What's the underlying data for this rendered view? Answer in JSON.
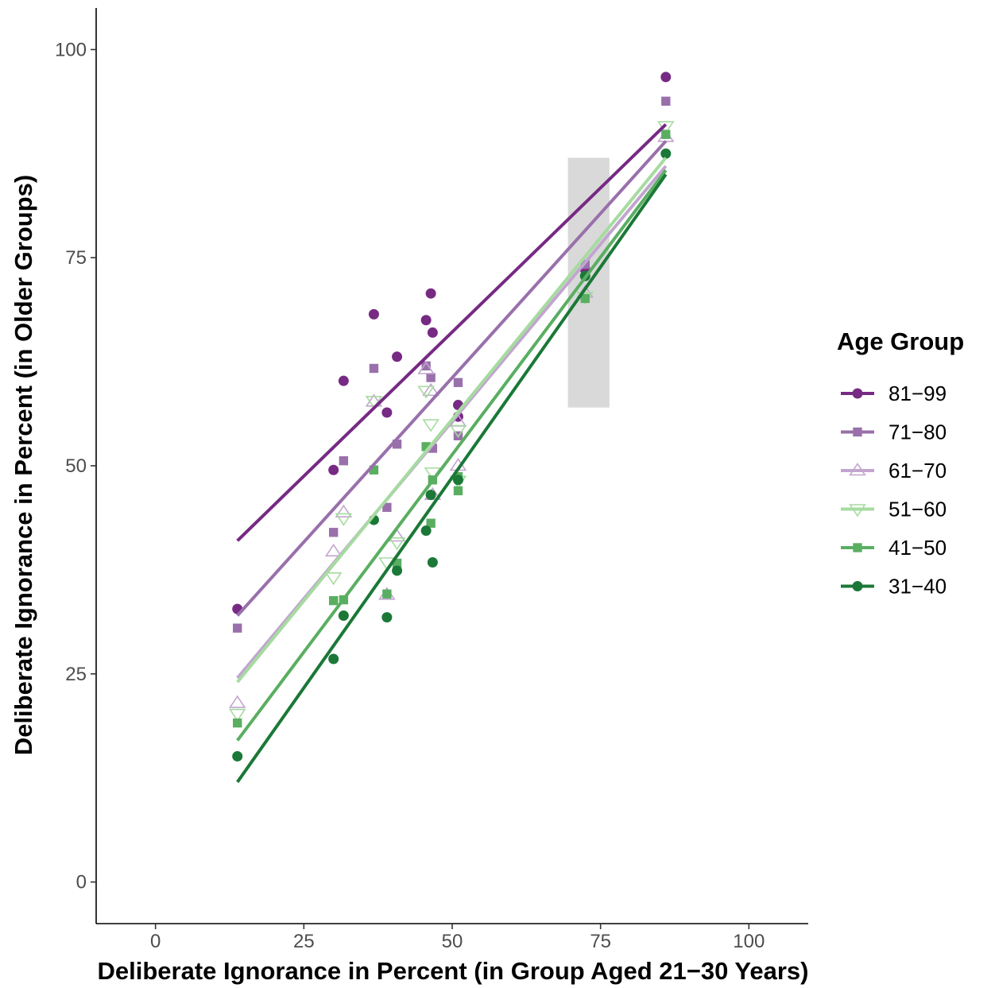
{
  "chart_data": {
    "type": "scatter",
    "xlabel": "Deliberate Ignorance in Percent (in Group Aged 21−30 Years)",
    "ylabel": "Deliberate Ignorance in Percent (in Older Groups)",
    "xlim": [
      -10,
      110
    ],
    "ylim": [
      -5,
      105
    ],
    "x_ticks": [
      "0",
      "25",
      "50",
      "75",
      "100"
    ],
    "y_ticks": [
      "0",
      "25",
      "50",
      "75",
      "100"
    ],
    "grid": false,
    "legend": {
      "title": "Age Group",
      "position": "right"
    },
    "highlight_box": {
      "x": [
        69.5,
        76.5
      ],
      "y": [
        57,
        87
      ]
    },
    "series": [
      {
        "name": "81−99",
        "color": "#762a83",
        "marker": "circle-filled",
        "line": {
          "x": [
            13.8,
            86
          ],
          "y": [
            41,
            91
          ]
        },
        "points": [
          [
            13.8,
            32.8
          ],
          [
            30,
            49.5
          ],
          [
            31.7,
            60.2
          ],
          [
            36.8,
            68.2
          ],
          [
            39,
            56.4
          ],
          [
            40.7,
            63.1
          ],
          [
            45.6,
            67.5
          ],
          [
            46.4,
            70.7
          ],
          [
            46.7,
            66
          ],
          [
            51,
            57.3
          ],
          [
            51,
            55.9
          ],
          [
            72.4,
            73.6
          ],
          [
            86,
            96.7
          ]
        ]
      },
      {
        "name": "71−80",
        "color": "#9970ab",
        "marker": "square-filled",
        "line": {
          "x": [
            13.8,
            86
          ],
          "y": [
            32,
            89
          ]
        },
        "points": [
          [
            13.8,
            30.5
          ],
          [
            30,
            42
          ],
          [
            31.7,
            50.6
          ],
          [
            36.8,
            61.7
          ],
          [
            39,
            45
          ],
          [
            40.7,
            52.6
          ],
          [
            45.6,
            62
          ],
          [
            46.4,
            60.6
          ],
          [
            46.7,
            52.1
          ],
          [
            51,
            60
          ],
          [
            51,
            53.6
          ],
          [
            72.4,
            74.2
          ],
          [
            86,
            93.8
          ]
        ]
      },
      {
        "name": "61−70",
        "color": "#c2a5cf",
        "marker": "triangle-up-open",
        "line": {
          "x": [
            13.8,
            86
          ],
          "y": [
            24.5,
            86
          ]
        },
        "points": [
          [
            13.8,
            21.5
          ],
          [
            30,
            39.7
          ],
          [
            31.7,
            44.4
          ],
          [
            36.8,
            57.7
          ],
          [
            39,
            34.5
          ],
          [
            40.7,
            41.5
          ],
          [
            45.6,
            61.6
          ],
          [
            46.4,
            59
          ],
          [
            46.7,
            46.5
          ],
          [
            51,
            55.3
          ],
          [
            51,
            50
          ],
          [
            72.4,
            70.8
          ],
          [
            86,
            89.5
          ]
        ]
      },
      {
        "name": "51−60",
        "color": "#a6dba0",
        "marker": "triangle-down-open",
        "line": {
          "x": [
            13.8,
            86
          ],
          "y": [
            24,
            87
          ]
        },
        "points": [
          [
            13.8,
            20.2
          ],
          [
            30,
            36.6
          ],
          [
            31.7,
            43.7
          ],
          [
            36.8,
            57.8
          ],
          [
            39,
            38.4
          ],
          [
            40.7,
            40.8
          ],
          [
            45.6,
            59
          ],
          [
            46.4,
            55
          ],
          [
            46.7,
            49.2
          ],
          [
            51,
            54.3
          ],
          [
            51,
            48.2
          ],
          [
            72.4,
            70.3
          ],
          [
            86,
            90.8
          ]
        ]
      },
      {
        "name": "41−50",
        "color": "#5aae61",
        "marker": "square-filled",
        "line": {
          "x": [
            13.8,
            86
          ],
          "y": [
            17,
            85.5
          ]
        },
        "points": [
          [
            13.8,
            19.1
          ],
          [
            30,
            33.8
          ],
          [
            31.7,
            33.9
          ],
          [
            36.8,
            49.5
          ],
          [
            39,
            34.6
          ],
          [
            40.7,
            38.3
          ],
          [
            45.6,
            52.3
          ],
          [
            46.4,
            43.1
          ],
          [
            46.7,
            48.3
          ],
          [
            51,
            48.7
          ],
          [
            51,
            47
          ],
          [
            72.4,
            70.1
          ],
          [
            86,
            89.8
          ]
        ]
      },
      {
        "name": "31−40",
        "color": "#1b7837",
        "marker": "circle-filled",
        "line": {
          "x": [
            13.8,
            86
          ],
          "y": [
            12,
            85
          ]
        },
        "points": [
          [
            13.8,
            15.1
          ],
          [
            30,
            26.8
          ],
          [
            31.7,
            32
          ],
          [
            36.8,
            43.5
          ],
          [
            39,
            31.8
          ],
          [
            40.7,
            37.4
          ],
          [
            45.6,
            42.2
          ],
          [
            46.4,
            46.5
          ],
          [
            46.7,
            38.4
          ],
          [
            51,
            48.3
          ],
          [
            72.4,
            72.8
          ],
          [
            86,
            87.5
          ]
        ]
      }
    ]
  }
}
